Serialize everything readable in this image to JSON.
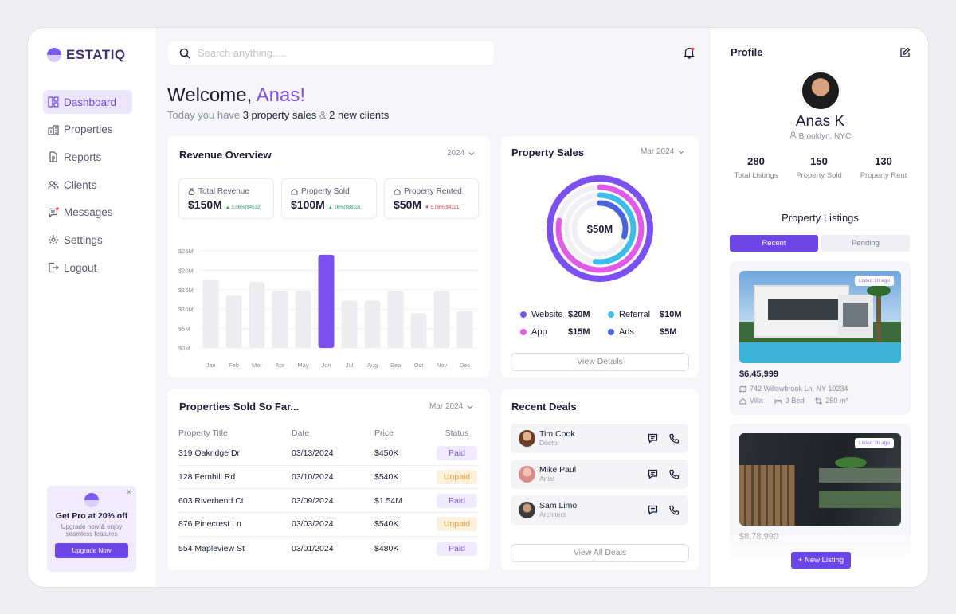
{
  "brand": {
    "name": "ESTATIQ"
  },
  "nav": {
    "items": [
      {
        "label": "Dashboard",
        "icon": "dashboard-icon"
      },
      {
        "label": "Properties",
        "icon": "building-icon"
      },
      {
        "label": "Reports",
        "icon": "file-icon"
      },
      {
        "label": "Clients",
        "icon": "users-icon"
      },
      {
        "label": "Messages",
        "icon": "message-icon"
      },
      {
        "label": "Settings",
        "icon": "gear-icon"
      },
      {
        "label": "Logout",
        "icon": "logout-icon"
      }
    ]
  },
  "promo": {
    "title": "Get Pro at 20% off",
    "subtitle": "Upgrade now & enjoy seamless features",
    "button": "Upgrade Now",
    "close": "×"
  },
  "search": {
    "placeholder": "Search anything....."
  },
  "welcome": {
    "greeting": "Welcome,",
    "name": "Anas!",
    "sub_prefix": "Today you have",
    "sub_sales": "3 property sales",
    "sub_amp": "&",
    "sub_clients": "2 new clients"
  },
  "revenue": {
    "title": "Revenue Overview",
    "year": "2024",
    "stats": [
      {
        "label": "Total Revenue",
        "value": "$150M",
        "change": "3.06%($4532)",
        "dir": "up"
      },
      {
        "label": "Property Sold",
        "value": "$100M",
        "change": "16%($9932)",
        "dir": "up"
      },
      {
        "label": "Property Rented",
        "value": "$50M",
        "change": "5.06%($4321)",
        "dir": "down"
      }
    ]
  },
  "chart_data": {
    "type": "bar",
    "title": "Revenue Overview",
    "categories": [
      "Jan",
      "Feb",
      "Mar",
      "Apr",
      "May",
      "Jun",
      "Jul",
      "Aug",
      "Sep",
      "Oct",
      "Nov",
      "Dec"
    ],
    "values": [
      17.5,
      13.5,
      17,
      14.7,
      14.7,
      24,
      12.2,
      12.2,
      14.7,
      9,
      14.7,
      9.5
    ],
    "highlight": "Jun",
    "ylim": [
      0,
      25
    ],
    "yticks": [
      "$0M",
      "$5M",
      "$10M",
      "$15M",
      "$20M",
      "$25M"
    ],
    "xlabel": "",
    "ylabel": "",
    "grid": true
  },
  "sales": {
    "title": "Property Sales",
    "period": "Mar 2024",
    "center": "$50M",
    "channels": [
      {
        "label": "Website",
        "value": "$20M",
        "color": "#7c4ff0",
        "pct": 1.0
      },
      {
        "label": "Referral",
        "value": "$10M",
        "color": "#3bbde8",
        "pct": 0.52
      },
      {
        "label": "App",
        "value": "$15M",
        "color": "#e25be8",
        "pct": 0.78
      },
      {
        "label": "Ads",
        "value": "$5M",
        "color": "#4a63e0",
        "pct": 0.3
      }
    ],
    "button": "View Details"
  },
  "sold": {
    "title": "Properties Sold So Far...",
    "period": "Mar 2024",
    "headers": [
      "Property Title",
      "Date",
      "Price",
      "Status"
    ],
    "rows": [
      {
        "title": "319 Oakridge Dr",
        "date": "03/13/2024",
        "price": "$450K",
        "status": "Paid"
      },
      {
        "title": "128 Fernhill Rd",
        "date": "03/10/2024",
        "price": "$540K",
        "status": "Unpaid"
      },
      {
        "title": "603 Riverbend Ct",
        "date": "03/09/2024",
        "price": "$1.54M",
        "status": "Paid"
      },
      {
        "title": "876 Pinecrest Ln",
        "date": "03/03/2024",
        "price": "$540K",
        "status": "Unpaid"
      },
      {
        "title": "554 Mapleview St",
        "date": "03/01/2024",
        "price": "$480K",
        "status": "Paid"
      }
    ]
  },
  "deals": {
    "title": "Recent Deals",
    "items": [
      {
        "name": "Tim Cook",
        "role": "Doctor"
      },
      {
        "name": "Mike Paul",
        "role": "Artist"
      },
      {
        "name": "Sam Limo",
        "role": "Architect"
      }
    ],
    "button": "View All Deals"
  },
  "profile": {
    "title": "Profile",
    "name": "Anas K",
    "location": "Brooklyn, NYC",
    "stats": [
      {
        "value": "280",
        "label": "Total Listings"
      },
      {
        "value": "150",
        "label": "Property Sold"
      },
      {
        "value": "130",
        "label": "Property Rent"
      }
    ]
  },
  "listings": {
    "title": "Property Listings",
    "tabs": [
      "Recent",
      "Pending"
    ],
    "items": [
      {
        "badge": "Listed 1h ago",
        "price": "$6,45,999",
        "address": "742 Willowbrook Ln, NY 10234",
        "type": "Villa",
        "beds": "3 Bed",
        "area": "250 m²"
      },
      {
        "badge": "Listed 3h ago",
        "price": "$8,78,990"
      }
    ],
    "new_button": "+ New Listing"
  }
}
